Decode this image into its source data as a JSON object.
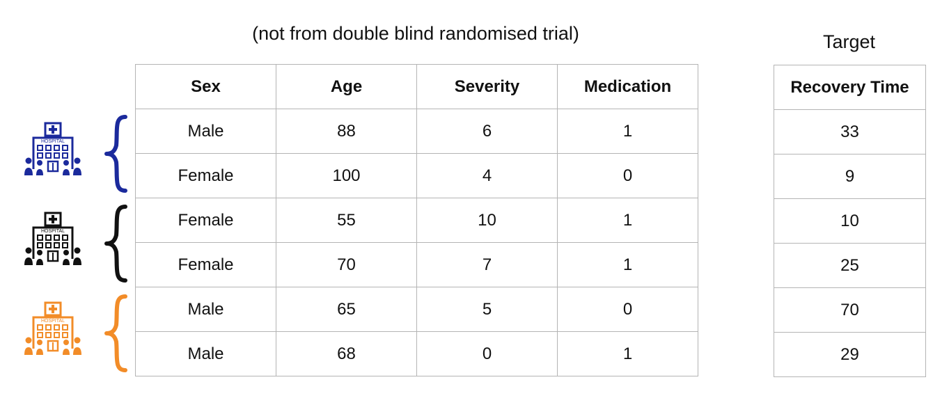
{
  "subtitle": "(not from double blind randomised trial)",
  "target_title": "Target",
  "features": {
    "columns": [
      "Sex",
      "Age",
      "Severity",
      "Medication"
    ],
    "rows": [
      [
        "Male",
        "88",
        "6",
        "1"
      ],
      [
        "Female",
        "100",
        "4",
        "0"
      ],
      [
        "Female",
        "55",
        "10",
        "1"
      ],
      [
        "Female",
        "70",
        "7",
        "1"
      ],
      [
        "Male",
        "65",
        "5",
        "0"
      ],
      [
        "Male",
        "68",
        "0",
        "1"
      ]
    ]
  },
  "target": {
    "column": "Recovery Time",
    "values": [
      "33",
      "9",
      "10",
      "25",
      "70",
      "29"
    ]
  },
  "hospitals": [
    {
      "icon": "hospital-icon",
      "label": "HOSPITAL",
      "color": "#1b2a9c"
    },
    {
      "icon": "hospital-icon",
      "label": "HOSPITAL",
      "color": "#111111"
    },
    {
      "icon": "hospital-icon",
      "label": "HOSPITAL",
      "color": "#f28c28"
    }
  ]
}
